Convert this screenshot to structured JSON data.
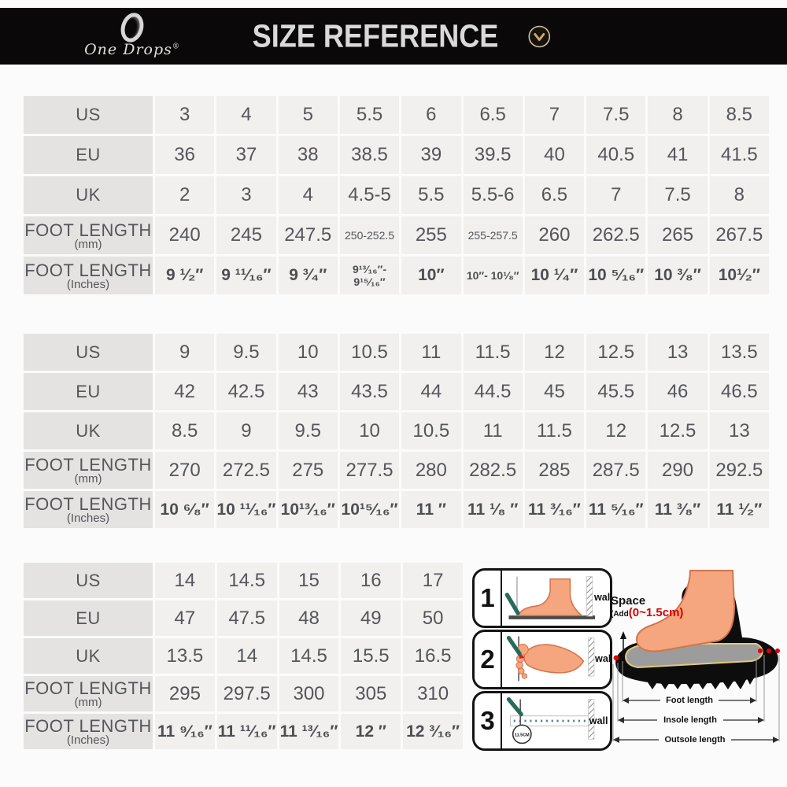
{
  "header": {
    "logo": {
      "brand": "One Drops",
      "registered": "®"
    },
    "title": "SIZE REFERENCE",
    "chevron_icon": "chevron-down"
  },
  "size_tables": [
    {
      "name": "sizes-3-to-8.5",
      "rows": [
        {
          "label": "US",
          "sublabel": "",
          "values": [
            "3",
            "4",
            "5",
            "5.5",
            "6",
            "6.5",
            "7",
            "7.5",
            "8",
            "8.5"
          ]
        },
        {
          "label": "EU",
          "sublabel": "",
          "values": [
            "36",
            "37",
            "38",
            "38.5",
            "39",
            "39.5",
            "40",
            "40.5",
            "41",
            "41.5"
          ]
        },
        {
          "label": "UK",
          "sublabel": "",
          "values": [
            "2",
            "3",
            "4",
            "4.5-5",
            "5.5",
            "5.5-6",
            "6.5",
            "7",
            "7.5",
            "8"
          ]
        },
        {
          "label": "FOOT LENGTH",
          "sublabel": "(mm)",
          "values": [
            "240",
            "245",
            "247.5",
            "250-252.5",
            "255",
            "255-257.5",
            "260",
            "262.5",
            "265",
            "267.5"
          ]
        },
        {
          "label": "FOOT LENGTH",
          "sublabel": "(Inches)",
          "values": [
            "9 ¹⁄₂″",
            "9 ¹¹⁄₁₆″",
            "9 ³⁄₄″",
            "9¹³⁄₁₆″- 9¹⁵⁄₁₆″",
            "10″",
            "10″- 10¹⁄₈″",
            "10 ¹⁄₄″",
            "10 ⁵⁄₁₆″",
            "10 ³⁄₈″",
            "10¹⁄₂″"
          ]
        }
      ]
    },
    {
      "name": "sizes-9-to-13.5",
      "rows": [
        {
          "label": "US",
          "sublabel": "",
          "values": [
            "9",
            "9.5",
            "10",
            "10.5",
            "11",
            "11.5",
            "12",
            "12.5",
            "13",
            "13.5"
          ]
        },
        {
          "label": "EU",
          "sublabel": "",
          "values": [
            "42",
            "42.5",
            "43",
            "43.5",
            "44",
            "44.5",
            "45",
            "45.5",
            "46",
            "46.5"
          ]
        },
        {
          "label": "UK",
          "sublabel": "",
          "values": [
            "8.5",
            "9",
            "9.5",
            "10",
            "10.5",
            "11",
            "11.5",
            "12",
            "12.5",
            "13"
          ]
        },
        {
          "label": "FOOT LENGTH",
          "sublabel": "(mm)",
          "values": [
            "270",
            "272.5",
            "275",
            "277.5",
            "280",
            "282.5",
            "285",
            "287.5",
            "290",
            "292.5"
          ]
        },
        {
          "label": "FOOT LENGTH",
          "sublabel": "(Inches)",
          "values": [
            "10 ⁶⁄₈″",
            "10 ¹¹⁄₁₆″",
            "10¹³⁄₁₆″",
            "10¹⁵⁄₁₆″",
            "11 ″",
            "11 ¹⁄₈ ″",
            "11 ³⁄₁₆″",
            "11 ⁵⁄₁₆″",
            "11 ³⁄₈″",
            "11 ¹⁄₂″"
          ]
        }
      ]
    },
    {
      "name": "sizes-14-to-17",
      "rows": [
        {
          "label": "US",
          "sublabel": "",
          "values": [
            "14",
            "14.5",
            "15",
            "16",
            "17"
          ]
        },
        {
          "label": "EU",
          "sublabel": "",
          "values": [
            "47",
            "47.5",
            "48",
            "49",
            "50"
          ]
        },
        {
          "label": "UK",
          "sublabel": "",
          "values": [
            "13.5",
            "14",
            "14.5",
            "15.5",
            "16.5"
          ]
        },
        {
          "label": "FOOT LENGTH",
          "sublabel": "(mm)",
          "values": [
            "295",
            "297.5",
            "300",
            "305",
            "310"
          ]
        },
        {
          "label": "FOOT LENGTH",
          "sublabel": "(Inches)",
          "values": [
            "11 ⁹⁄₁₆″",
            "11 ¹¹⁄₁₆″",
            "11 ¹³⁄₁₆″",
            "12  ″",
            "12 ³⁄₁₆″"
          ]
        }
      ]
    }
  ],
  "measure_steps": {
    "steps": [
      {
        "number": "1",
        "wall": "wall"
      },
      {
        "number": "2",
        "wall": "wall"
      },
      {
        "number": "3",
        "wall": "wall",
        "ruler_circle": "11.5CM"
      }
    ]
  },
  "shoe_diagram": {
    "space": "Space",
    "add_prefix": "(Add",
    "add_value": "(0~1.5cm)",
    "measures": {
      "foot": "Foot length",
      "insole": "Insole length",
      "outsole": "Outsole length"
    }
  },
  "colors": {
    "header_bg": "#0a0809",
    "accent_gold": "#c9a96a",
    "head_cell_bg": "#e4e3e2",
    "data_cell_bg": "#f1f0ef",
    "text": "#55565b",
    "red": "#d40000",
    "skin": "#f5a67f",
    "skin_outline": "#d2764e",
    "pencil_green": "#2a6a5c"
  }
}
